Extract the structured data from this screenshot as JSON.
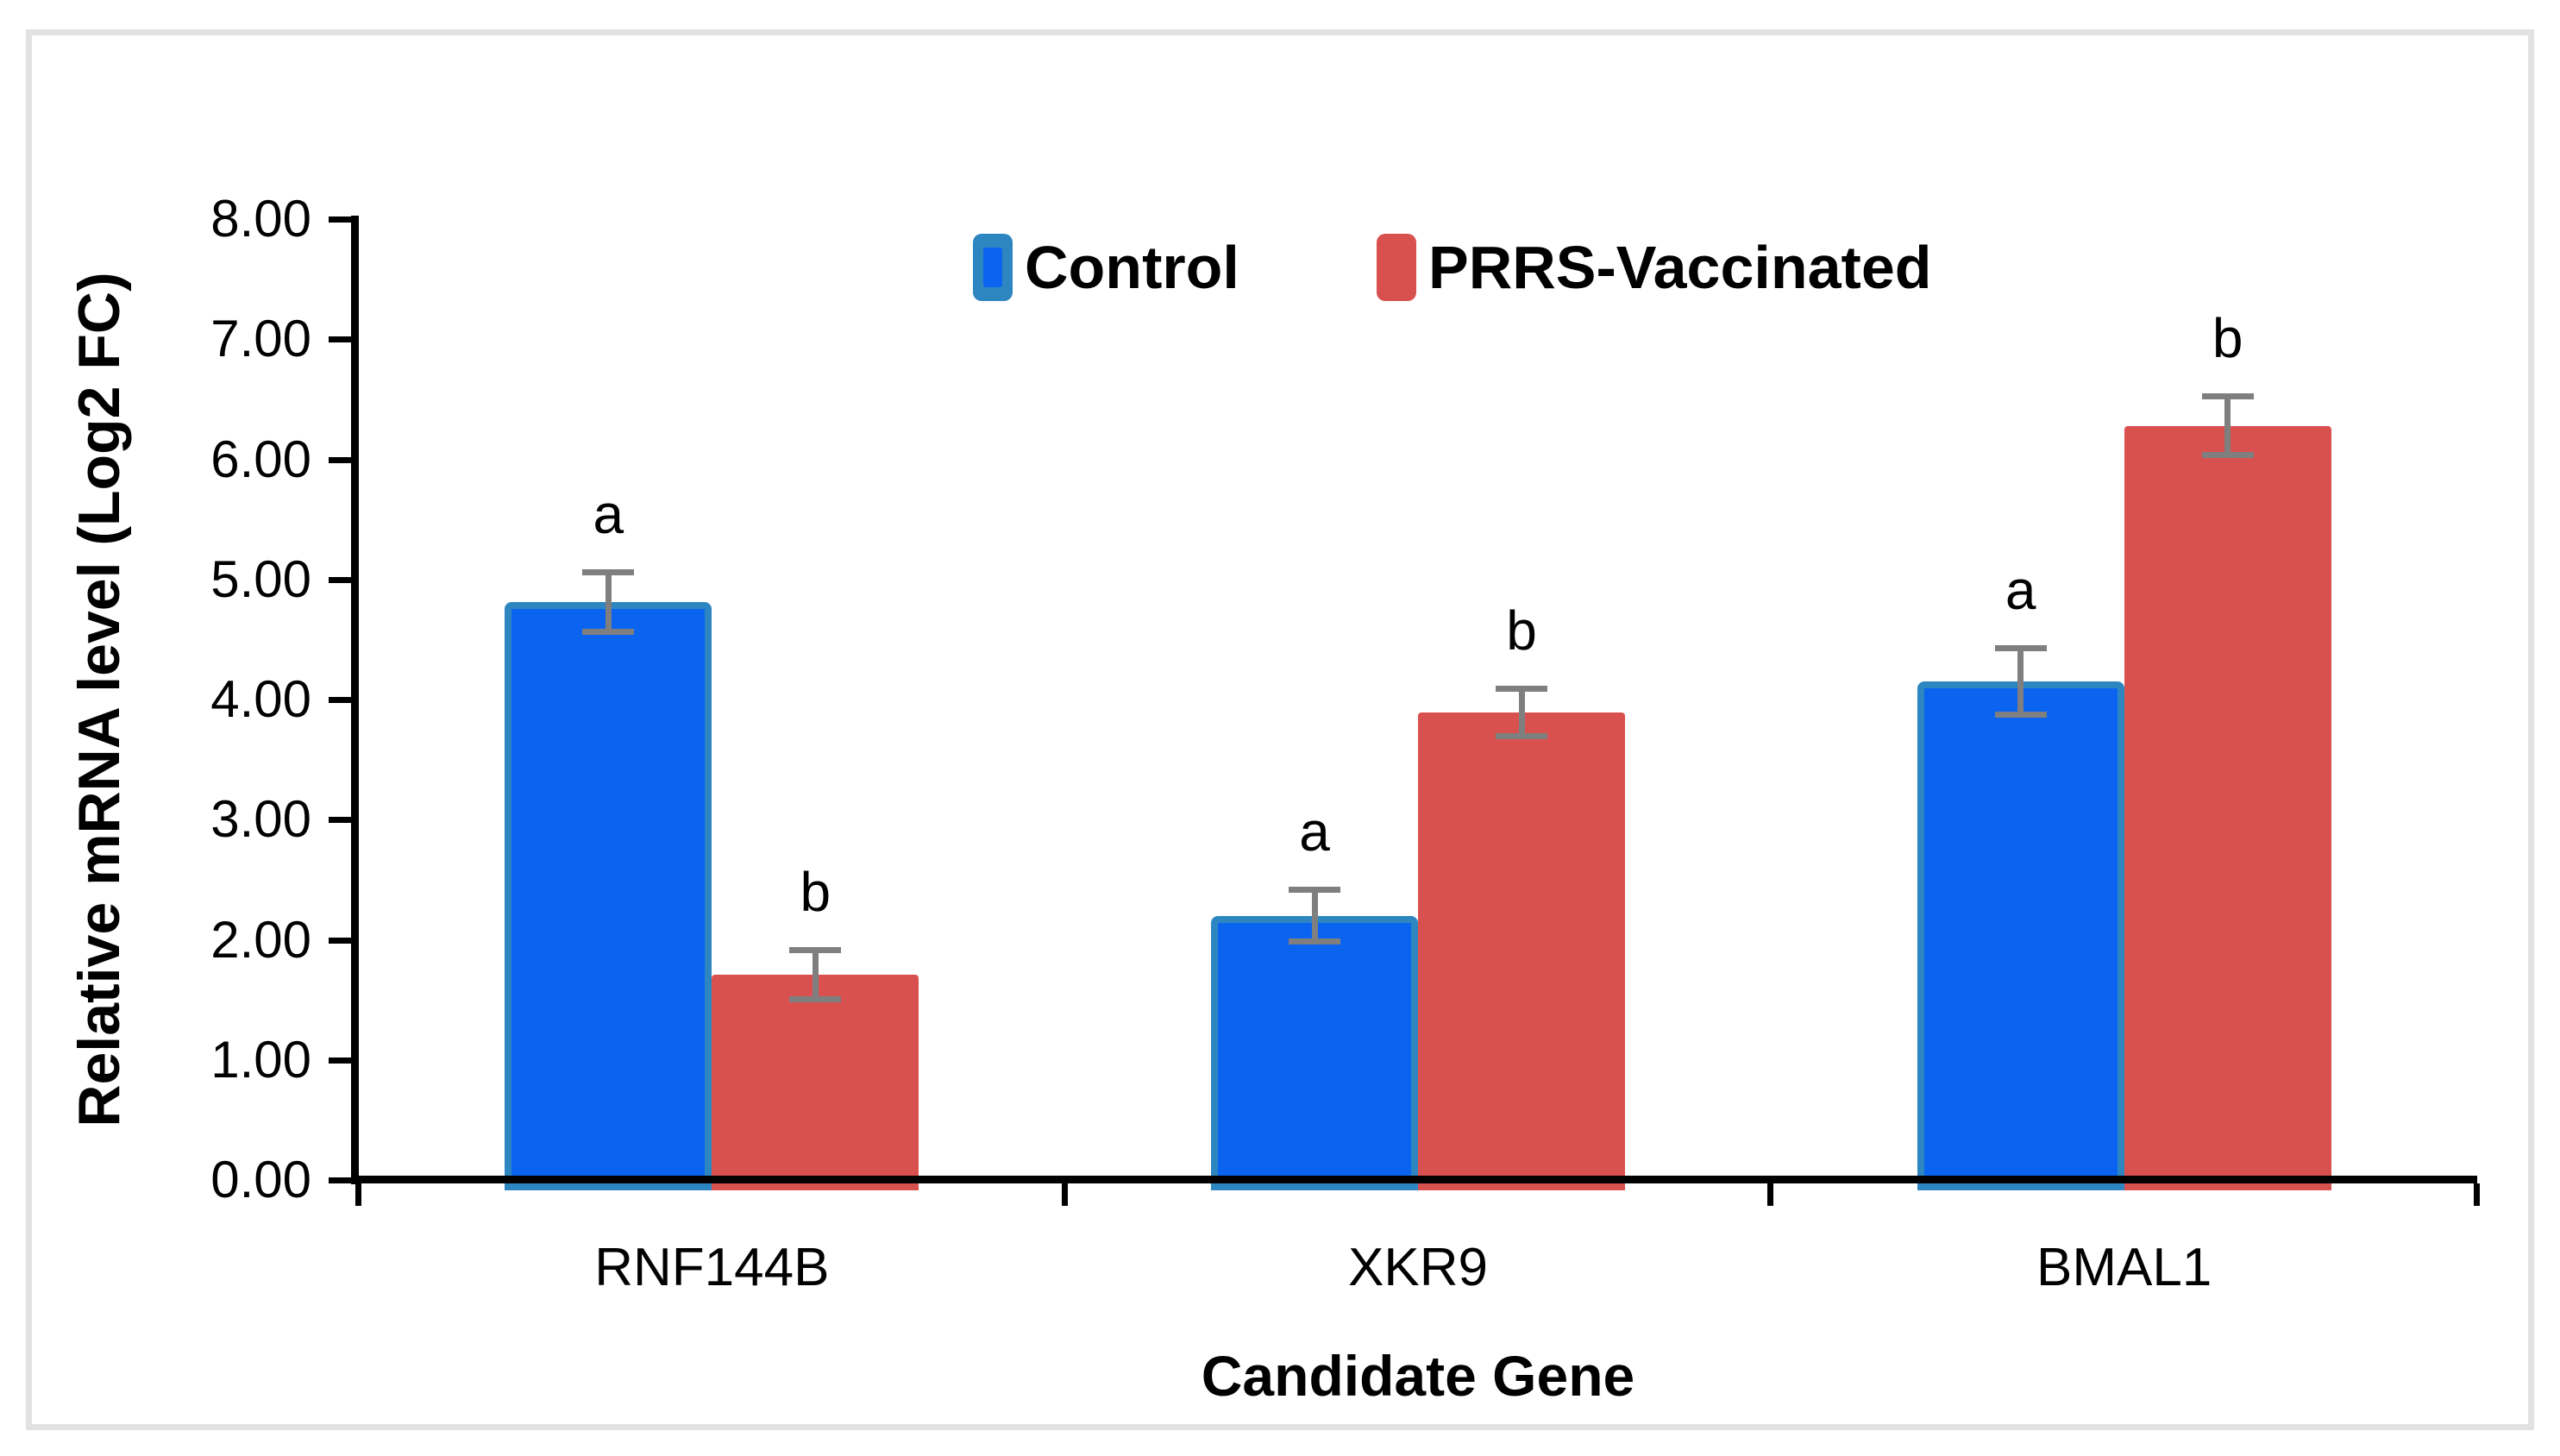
{
  "titles": {
    "y_axis": "Relative mRNA level (Log2 FC)",
    "x_axis": "Candidate Gene"
  },
  "legend": {
    "items": [
      {
        "label": "Control"
      },
      {
        "label": "PRRS-Vaccinated"
      }
    ]
  },
  "chart_data": {
    "type": "bar",
    "title": "",
    "categories": [
      "RNF144B",
      "XKR9",
      "BMAL1"
    ],
    "series": [
      {
        "name": "Control",
        "values": [
          4.81,
          2.2,
          4.15
        ],
        "errors": [
          0.25,
          0.22,
          0.28
        ],
        "sig_letters": [
          "a",
          "a",
          "a"
        ],
        "fill": "#0A64F0",
        "border": "#2E86C1"
      },
      {
        "name": "PRRS-Vaccinated",
        "values": [
          1.71,
          3.89,
          6.28
        ],
        "errors": [
          0.21,
          0.2,
          0.25
        ],
        "sig_letters": [
          "b",
          "b",
          "b"
        ],
        "fill": "#D9514F",
        "border": "#D9514F"
      }
    ],
    "xlabel": "Candidate Gene",
    "ylabel": "Relative mRNA level (Log2 FC)",
    "ylim": [
      0,
      8
    ],
    "y_tick_step": 1,
    "y_tick_labels": [
      "0.00",
      "1.00",
      "2.00",
      "3.00",
      "4.00",
      "5.00",
      "6.00",
      "7.00",
      "8.00"
    ],
    "grid": false,
    "legend_position": "top-center",
    "error_bar_color": "#7F7F7F",
    "axis_color": "#000000",
    "frame_color": "#E2E2E2",
    "background": "#FFFFFF"
  }
}
